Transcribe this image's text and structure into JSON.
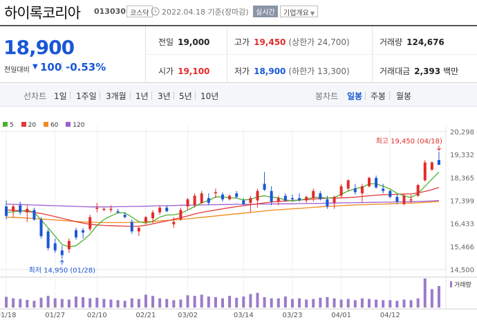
{
  "header": {
    "stock_name": "하이록코리아",
    "stock_code": "013030",
    "market": "코스닥",
    "date_text": "2022.04.18 기준(장마감)",
    "realtime_btn": "실시간",
    "company_btn": "기업개요"
  },
  "quote": {
    "current_price": "18,900",
    "change_label": "전일대비",
    "change_value": "100",
    "change_rate": "-0.53%",
    "prev_close_label": "전일",
    "prev_close": "19,000",
    "high_label": "고가",
    "high": "19,450",
    "upper_limit": "(상한가 24,700)",
    "volume_label": "거래량",
    "volume": "124,676",
    "open_label": "시가",
    "open": "19,100",
    "low_label": "저가",
    "low": "18,900",
    "lower_limit": "(하한가 13,300)",
    "amount_label": "거래대금",
    "amount": "2,393",
    "amount_unit": "백만"
  },
  "period_tabs": {
    "line_label": "선차트",
    "line": [
      "1일",
      "1주일",
      "3개월",
      "1년",
      "3년",
      "5년",
      "10년"
    ],
    "candle_label": "봉차트",
    "candle": [
      "일봉",
      "주봉",
      "월봉"
    ],
    "active": "일봉"
  },
  "colors": {
    "up": "#e22b2b",
    "down": "#1a57d6",
    "ma5": "#4caf2e",
    "ma20": "#e53935",
    "ma60": "#ef8a1a",
    "ma120": "#9c5fd0",
    "volume": "#9c7bc8"
  },
  "chart_data": {
    "type": "candlestick",
    "legend": [
      {
        "name": "5",
        "color": "#4caf2e"
      },
      {
        "name": "20",
        "color": "#e53935"
      },
      {
        "name": "60",
        "color": "#ef8a1a"
      },
      {
        "name": "120",
        "color": "#9c5fd0"
      }
    ],
    "y_ticks": [
      "20,298",
      "19,332",
      "18,365",
      "17,399",
      "16,433",
      "15,466",
      "14,500"
    ],
    "ylim": [
      14500,
      20298
    ],
    "x_ticks": [
      "01/18",
      "01/27",
      "02/10",
      "02/21",
      "03/02",
      "03/14",
      "03/23",
      "04/01",
      "04/12"
    ],
    "x_tick_index": [
      0,
      7,
      13,
      20,
      26,
      34,
      41,
      48,
      55
    ],
    "volume_label": "거래량",
    "max_annotation": "최고 19,450 (04/18)",
    "min_annotation": "최저 14,950 (01/28)",
    "candles": [
      {
        "o": 17150,
        "h": 17400,
        "l": 16600,
        "c": 16750
      },
      {
        "o": 16950,
        "h": 17250,
        "l": 16700,
        "c": 17150
      },
      {
        "o": 17200,
        "h": 17350,
        "l": 16800,
        "c": 16900
      },
      {
        "o": 16900,
        "h": 17200,
        "l": 16500,
        "c": 17050
      },
      {
        "o": 17000,
        "h": 17100,
        "l": 16550,
        "c": 16600
      },
      {
        "o": 16600,
        "h": 16700,
        "l": 15800,
        "c": 15900
      },
      {
        "o": 16100,
        "h": 16200,
        "l": 15300,
        "c": 15400
      },
      {
        "o": 15600,
        "h": 15800,
        "l": 15200,
        "c": 15300
      },
      {
        "o": 15300,
        "h": 15500,
        "l": 14950,
        "c": 15100
      },
      {
        "o": 15350,
        "h": 15800,
        "l": 15200,
        "c": 15700
      },
      {
        "o": 16150,
        "h": 16250,
        "l": 15750,
        "c": 15850
      },
      {
        "o": 16150,
        "h": 16250,
        "l": 15800,
        "c": 16050
      },
      {
        "o": 16200,
        "h": 16800,
        "l": 16100,
        "c": 16700
      },
      {
        "o": 17050,
        "h": 17300,
        "l": 16900,
        "c": 17100
      },
      {
        "o": 17000,
        "h": 17100,
        "l": 16950,
        "c": 17050
      },
      {
        "o": 17000,
        "h": 17200,
        "l": 16900,
        "c": 17050
      },
      {
        "o": 16950,
        "h": 17050,
        "l": 16850,
        "c": 16900
      },
      {
        "o": 16800,
        "h": 16900,
        "l": 16650,
        "c": 16700
      },
      {
        "o": 16500,
        "h": 16600,
        "l": 16000,
        "c": 16100
      },
      {
        "o": 16100,
        "h": 16300,
        "l": 15900,
        "c": 16250
      },
      {
        "o": 16500,
        "h": 16750,
        "l": 16400,
        "c": 16700
      },
      {
        "o": 16650,
        "h": 17000,
        "l": 16450,
        "c": 16900
      },
      {
        "o": 16900,
        "h": 17200,
        "l": 16800,
        "c": 17100
      },
      {
        "o": 17100,
        "h": 17200,
        "l": 16900,
        "c": 16950
      },
      {
        "o": 16400,
        "h": 16700,
        "l": 16250,
        "c": 16500
      },
      {
        "o": 16600,
        "h": 17100,
        "l": 16550,
        "c": 17000
      },
      {
        "o": 17150,
        "h": 17500,
        "l": 17000,
        "c": 17450
      },
      {
        "o": 17200,
        "h": 17700,
        "l": 17100,
        "c": 17600
      },
      {
        "o": 17300,
        "h": 17800,
        "l": 17250,
        "c": 17700
      },
      {
        "o": 17500,
        "h": 17700,
        "l": 17200,
        "c": 17300
      },
      {
        "o": 17700,
        "h": 17900,
        "l": 17500,
        "c": 17750
      },
      {
        "o": 17650,
        "h": 17750,
        "l": 17350,
        "c": 17450
      },
      {
        "o": 17450,
        "h": 17650,
        "l": 17400,
        "c": 17600
      },
      {
        "o": 17700,
        "h": 17800,
        "l": 17500,
        "c": 17550
      },
      {
        "o": 17400,
        "h": 17500,
        "l": 17200,
        "c": 17250
      },
      {
        "o": 17300,
        "h": 17600,
        "l": 16900,
        "c": 17500
      },
      {
        "o": 17400,
        "h": 17900,
        "l": 17100,
        "c": 17800
      },
      {
        "o": 18100,
        "h": 18600,
        "l": 17800,
        "c": 17850
      },
      {
        "o": 17800,
        "h": 18000,
        "l": 17200,
        "c": 17350
      },
      {
        "o": 17350,
        "h": 17600,
        "l": 17200,
        "c": 17500
      },
      {
        "o": 17600,
        "h": 17700,
        "l": 17350,
        "c": 17400
      },
      {
        "o": 17500,
        "h": 17650,
        "l": 17350,
        "c": 17450
      },
      {
        "o": 17500,
        "h": 17700,
        "l": 17350,
        "c": 17400
      },
      {
        "o": 17400,
        "h": 17600,
        "l": 17300,
        "c": 17550
      },
      {
        "o": 17500,
        "h": 17900,
        "l": 17350,
        "c": 17800
      },
      {
        "o": 17700,
        "h": 17800,
        "l": 17400,
        "c": 17450
      },
      {
        "o": 17450,
        "h": 17600,
        "l": 17050,
        "c": 17150
      },
      {
        "o": 17300,
        "h": 17600,
        "l": 17050,
        "c": 17550
      },
      {
        "o": 17600,
        "h": 18100,
        "l": 17500,
        "c": 18000
      },
      {
        "o": 17900,
        "h": 18300,
        "l": 17800,
        "c": 18250
      },
      {
        "o": 17900,
        "h": 18100,
        "l": 17650,
        "c": 17750
      },
      {
        "o": 17700,
        "h": 18100,
        "l": 17300,
        "c": 18000
      },
      {
        "o": 18000,
        "h": 18400,
        "l": 17950,
        "c": 18350
      },
      {
        "o": 18350,
        "h": 18450,
        "l": 17900,
        "c": 17950
      },
      {
        "o": 17900,
        "h": 18100,
        "l": 17700,
        "c": 17800
      },
      {
        "o": 17800,
        "h": 17850,
        "l": 17500,
        "c": 17550
      },
      {
        "o": 17550,
        "h": 17650,
        "l": 17250,
        "c": 17350
      },
      {
        "o": 17250,
        "h": 17700,
        "l": 17200,
        "c": 17600
      },
      {
        "o": 17400,
        "h": 17650,
        "l": 17300,
        "c": 17450
      },
      {
        "o": 17600,
        "h": 18100,
        "l": 17550,
        "c": 18050
      },
      {
        "o": 18250,
        "h": 19100,
        "l": 18200,
        "c": 19000
      },
      {
        "o": 18700,
        "h": 19050,
        "l": 18650,
        "c": 19000
      },
      {
        "o": 19100,
        "h": 19450,
        "l": 18900,
        "c": 18900
      }
    ],
    "volumes": [
      35,
      30,
      28,
      25,
      22,
      32,
      38,
      30,
      28,
      26,
      36,
      34,
      30,
      32,
      28,
      26,
      24,
      22,
      30,
      28,
      42,
      38,
      30,
      28,
      24,
      26,
      40,
      38,
      42,
      36,
      34,
      30,
      38,
      32,
      36,
      44,
      48,
      34,
      30,
      30,
      36,
      28,
      30,
      26,
      28,
      32,
      34,
      30,
      26,
      28,
      24,
      30,
      28,
      26,
      24,
      24,
      22,
      26,
      24,
      30,
      95,
      60,
      70
    ],
    "ma5": [
      16900,
      16920,
      16950,
      16990,
      16900,
      16580,
      16250,
      15900,
      15550,
      15450,
      15500,
      15720,
      15980,
      16350,
      16600,
      16750,
      16880,
      16880,
      16700,
      16510,
      16450,
      16520,
      16700,
      16790,
      16800,
      16850,
      17000,
      17150,
      17300,
      17400,
      17550,
      17550,
      17510,
      17500,
      17420,
      17450,
      17550,
      17600,
      17540,
      17510,
      17420,
      17380,
      17420,
      17460,
      17520,
      17540,
      17500,
      17520,
      17660,
      17800,
      17900,
      17950,
      18100,
      18100,
      18000,
      17880,
      17700,
      17600,
      17520,
      17700,
      18000,
      18300,
      18600
    ],
    "ma20": [
      17000,
      16990,
      16970,
      16940,
      16900,
      16850,
      16790,
      16720,
      16650,
      16580,
      16510,
      16450,
      16400,
      16370,
      16350,
      16340,
      16330,
      16320,
      16310,
      16320,
      16360,
      16420,
      16480,
      16540,
      16610,
      16680,
      16750,
      16830,
      16900,
      16950,
      17000,
      17050,
      17100,
      17140,
      17180,
      17220,
      17260,
      17300,
      17330,
      17360,
      17380,
      17400,
      17420,
      17440,
      17460,
      17480,
      17500,
      17500,
      17510,
      17520,
      17540,
      17570,
      17600,
      17620,
      17640,
      17650,
      17660,
      17670,
      17680,
      17720,
      17780,
      17860,
      17950
    ],
    "ma60": [
      16700,
      16690,
      16680,
      16660,
      16640,
      16620,
      16600,
      16580,
      16560,
      16540,
      16520,
      16500,
      16490,
      16480,
      16470,
      16470,
      16470,
      16470,
      16480,
      16490,
      16500,
      16520,
      16540,
      16560,
      16580,
      16600,
      16630,
      16660,
      16690,
      16720,
      16750,
      16780,
      16810,
      16840,
      16870,
      16900,
      16930,
      16960,
      16990,
      17010,
      17030,
      17050,
      17070,
      17090,
      17110,
      17130,
      17150,
      17170,
      17180,
      17200,
      17210,
      17220,
      17230,
      17240,
      17250,
      17260,
      17270,
      17280,
      17290,
      17300,
      17320,
      17340,
      17360
    ],
    "ma120": [
      17250,
      17240,
      17230,
      17220,
      17210,
      17200,
      17190,
      17180,
      17170,
      17160,
      17150,
      17140,
      17130,
      17130,
      17130,
      17130,
      17140,
      17140,
      17150,
      17150,
      17160,
      17170,
      17180,
      17180,
      17190,
      17200,
      17200,
      17210,
      17210,
      17220,
      17220,
      17230,
      17230,
      17240,
      17240,
      17240,
      17250,
      17250,
      17250,
      17260,
      17260,
      17260,
      17270,
      17270,
      17280,
      17280,
      17290,
      17290,
      17300,
      17300,
      17310,
      17310,
      17320,
      17320,
      17330,
      17330,
      17340,
      17340,
      17350,
      17360,
      17370,
      17380,
      17400
    ]
  }
}
